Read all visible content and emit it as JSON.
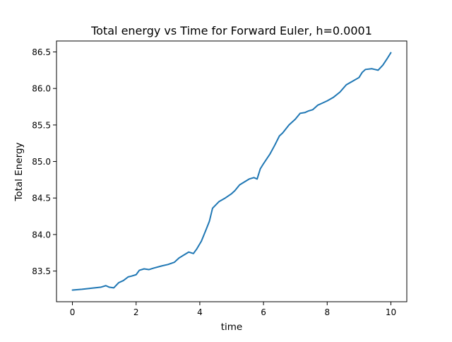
{
  "chart_data": {
    "type": "line",
    "title": "Total energy vs Time for Forward Euler, h=0.0001",
    "xlabel": "time",
    "ylabel": "Total Energy",
    "xlim": [
      -0.5,
      10.5
    ],
    "ylim": [
      83.08,
      86.65
    ],
    "xticks": [
      0,
      2,
      4,
      6,
      8,
      10
    ],
    "xtick_labels": [
      "0",
      "2",
      "4",
      "6",
      "8",
      "10"
    ],
    "yticks": [
      83.5,
      84.0,
      84.5,
      85.0,
      85.5,
      86.0,
      86.5
    ],
    "ytick_labels": [
      "83.5",
      "84.0",
      "84.5",
      "85.0",
      "85.5",
      "86.0",
      "86.5"
    ],
    "grid": false,
    "legend": "none",
    "series": [
      {
        "color": "#1f77b4",
        "x": [
          0,
          0.3,
          0.5,
          0.7,
          0.9,
          1.05,
          1.15,
          1.3,
          1.45,
          1.6,
          1.75,
          1.85,
          2.0,
          2.1,
          2.25,
          2.4,
          2.55,
          2.8,
          3.0,
          3.2,
          3.35,
          3.5,
          3.65,
          3.8,
          3.9,
          4.05,
          4.2,
          4.3,
          4.4,
          4.6,
          4.8,
          5.0,
          5.1,
          5.25,
          5.4,
          5.55,
          5.7,
          5.8,
          5.9,
          6.0,
          6.2,
          6.35,
          6.5,
          6.6,
          6.8,
          7.0,
          7.15,
          7.3,
          7.4,
          7.55,
          7.7,
          7.85,
          8.0,
          8.2,
          8.4,
          8.6,
          8.8,
          9.0,
          9.1,
          9.2,
          9.4,
          9.5,
          9.6,
          9.75,
          9.9,
          10.0
        ],
        "y": [
          83.24,
          83.25,
          83.26,
          83.27,
          83.28,
          83.3,
          83.28,
          83.27,
          83.34,
          83.37,
          83.42,
          83.43,
          83.45,
          83.51,
          83.53,
          83.52,
          83.54,
          83.57,
          83.59,
          83.62,
          83.68,
          83.72,
          83.76,
          83.74,
          83.8,
          83.91,
          84.07,
          84.18,
          84.36,
          84.45,
          84.5,
          84.56,
          84.6,
          84.68,
          84.72,
          84.76,
          84.78,
          84.76,
          84.9,
          84.97,
          85.1,
          85.22,
          85.35,
          85.39,
          85.5,
          85.58,
          85.66,
          85.67,
          85.69,
          85.71,
          85.77,
          85.8,
          85.83,
          85.88,
          85.95,
          86.05,
          86.1,
          86.15,
          86.22,
          86.26,
          86.27,
          86.26,
          86.25,
          86.32,
          86.42,
          86.49
        ]
      }
    ]
  }
}
